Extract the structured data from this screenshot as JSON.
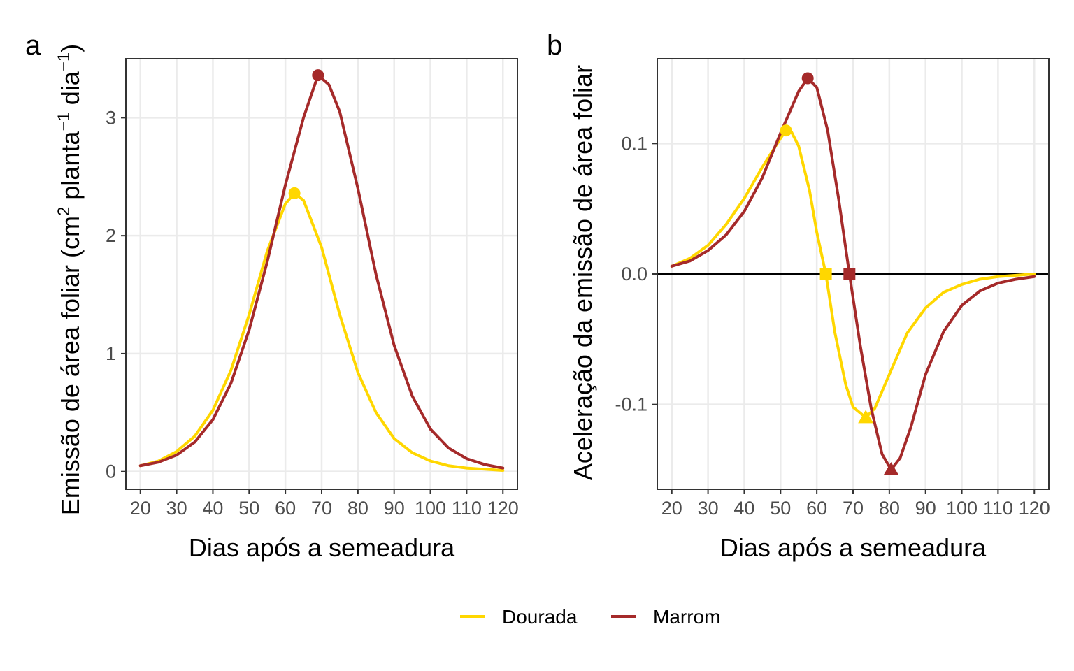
{
  "chart_data": [
    {
      "type": "line",
      "panel_tag": "a",
      "title": "",
      "xlabel": "Dias após a semeadura",
      "ylabel": "Emissão de área foliar (cm² planta⁻¹ dia⁻¹)",
      "ylabel_parts": {
        "pre": "Emissão de área foliar (cm",
        "sup1": "2",
        "mid": " planta",
        "sup2": "−1",
        "mid2": " dia",
        "sup3": "−1",
        "post": ")"
      },
      "xlim": [
        16,
        124
      ],
      "ylim": [
        -0.15,
        3.5
      ],
      "x_ticks": [
        20,
        30,
        40,
        50,
        60,
        70,
        80,
        90,
        100,
        110,
        120
      ],
      "y_ticks": [
        0,
        1,
        2,
        3
      ],
      "y_tick_labels": [
        "0",
        "1",
        "2",
        "3"
      ],
      "grid": true,
      "zero_line": false,
      "series": [
        {
          "name": "Dourada",
          "color": "#FFD700",
          "x": [
            20,
            25,
            30,
            35,
            40,
            45,
            50,
            55,
            60,
            62.5,
            65,
            70,
            75,
            80,
            85,
            90,
            95,
            100,
            105,
            110,
            115,
            120
          ],
          "values": [
            0.05,
            0.09,
            0.17,
            0.3,
            0.52,
            0.86,
            1.33,
            1.87,
            2.27,
            2.36,
            2.3,
            1.9,
            1.33,
            0.84,
            0.5,
            0.28,
            0.16,
            0.09,
            0.05,
            0.03,
            0.02,
            0.01
          ],
          "markers": [
            {
              "x": 62.5,
              "y": 2.36,
              "shape": "circle"
            }
          ]
        },
        {
          "name": "Marrom",
          "color": "#A52A2A",
          "x": [
            20,
            25,
            30,
            35,
            40,
            45,
            50,
            55,
            60,
            65,
            69,
            72,
            75,
            80,
            85,
            90,
            95,
            100,
            105,
            110,
            115,
            120
          ],
          "values": [
            0.05,
            0.08,
            0.14,
            0.25,
            0.44,
            0.75,
            1.2,
            1.78,
            2.43,
            3.0,
            3.36,
            3.28,
            3.05,
            2.4,
            1.67,
            1.07,
            0.64,
            0.36,
            0.2,
            0.11,
            0.06,
            0.03
          ],
          "markers": [
            {
              "x": 69,
              "y": 3.36,
              "shape": "circle"
            }
          ]
        }
      ]
    },
    {
      "type": "line",
      "panel_tag": "b",
      "title": "",
      "xlabel": "Dias após a semeadura",
      "ylabel": "Aceleração da emissão de área foliar",
      "xlim": [
        16,
        124
      ],
      "ylim": [
        -0.165,
        0.165
      ],
      "x_ticks": [
        20,
        30,
        40,
        50,
        60,
        70,
        80,
        90,
        100,
        110,
        120
      ],
      "y_ticks": [
        -0.1,
        0.0,
        0.1
      ],
      "y_tick_labels": [
        "-0.1",
        "0.0",
        "0.1"
      ],
      "grid": true,
      "zero_line": true,
      "series": [
        {
          "name": "Dourada",
          "color": "#FFD700",
          "x": [
            20,
            25,
            30,
            35,
            40,
            45,
            50,
            51.5,
            53,
            55,
            58,
            60,
            62.5,
            65,
            68,
            70,
            73.5,
            76,
            80,
            85,
            90,
            95,
            100,
            105,
            110,
            115,
            120
          ],
          "values": [
            0.006,
            0.012,
            0.022,
            0.038,
            0.058,
            0.082,
            0.104,
            0.11,
            0.109,
            0.098,
            0.064,
            0.032,
            0.0,
            -0.045,
            -0.085,
            -0.102,
            -0.11,
            -0.103,
            -0.077,
            -0.045,
            -0.026,
            -0.014,
            -0.008,
            -0.004,
            -0.002,
            -0.001,
            0.0
          ],
          "markers": [
            {
              "x": 51.5,
              "y": 0.11,
              "shape": "circle"
            },
            {
              "x": 62.5,
              "y": 0.0,
              "shape": "square"
            },
            {
              "x": 73.5,
              "y": -0.11,
              "shape": "triangle"
            }
          ]
        },
        {
          "name": "Marrom",
          "color": "#A52A2A",
          "x": [
            20,
            25,
            30,
            35,
            40,
            45,
            50,
            55,
            57.5,
            60,
            63,
            66,
            69,
            72,
            75,
            78,
            80.5,
            83,
            86,
            90,
            95,
            100,
            105,
            110,
            115,
            120
          ],
          "values": [
            0.006,
            0.01,
            0.018,
            0.03,
            0.048,
            0.074,
            0.108,
            0.14,
            0.15,
            0.143,
            0.11,
            0.058,
            0.0,
            -0.055,
            -0.103,
            -0.138,
            -0.15,
            -0.141,
            -0.117,
            -0.077,
            -0.044,
            -0.024,
            -0.013,
            -0.007,
            -0.004,
            -0.002
          ],
          "markers": [
            {
              "x": 57.5,
              "y": 0.15,
              "shape": "circle"
            },
            {
              "x": 69,
              "y": 0.0,
              "shape": "square"
            },
            {
              "x": 80.5,
              "y": -0.15,
              "shape": "triangle"
            }
          ]
        }
      ]
    }
  ],
  "legend": {
    "placement": "bottom",
    "items": [
      {
        "label": "Dourada",
        "color": "#FFD700"
      },
      {
        "label": "Marrom",
        "color": "#A52A2A"
      }
    ]
  }
}
